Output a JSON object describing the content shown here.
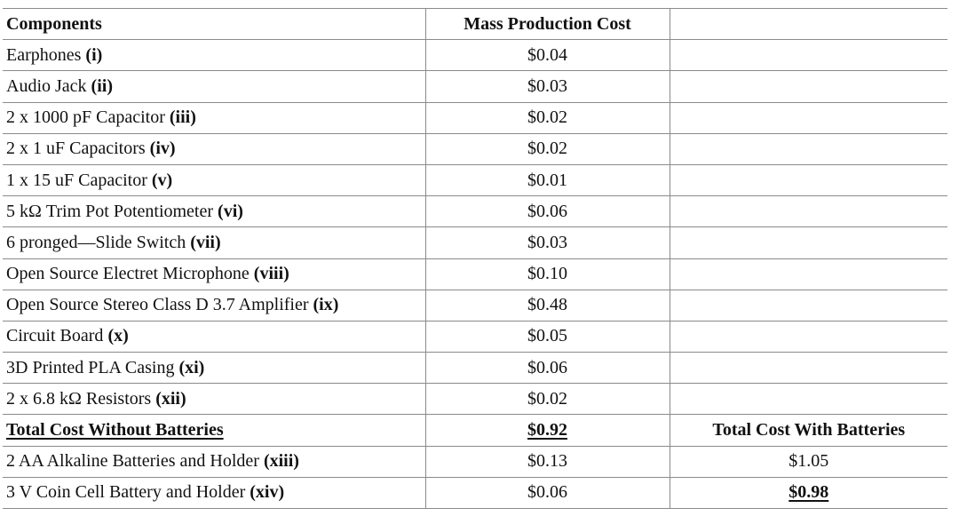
{
  "table": {
    "headers": {
      "components": "Components",
      "mass_production_cost": "Mass Production Cost",
      "extra": ""
    },
    "rows": [
      {
        "name": "Earphones",
        "roman": "(i)",
        "cost": "$0.04",
        "extra": ""
      },
      {
        "name": "Audio Jack",
        "roman": "(ii)",
        "cost": "$0.03",
        "extra": ""
      },
      {
        "name": "2 x 1000 pF Capacitor",
        "roman": "(iii)",
        "cost": "$0.02",
        "extra": ""
      },
      {
        "name": "2 x 1 uF Capacitors",
        "roman": "(iv)",
        "cost": "$0.02",
        "extra": ""
      },
      {
        "name": "1 x 15 uF Capacitor",
        "roman": "(v)",
        "cost": "$0.01",
        "extra": ""
      },
      {
        "name": "5 kΩ Trim Pot Potentiometer",
        "roman": "(vi)",
        "cost": "$0.06",
        "extra": ""
      },
      {
        "name": "6 pronged—Slide Switch",
        "roman": "(vii)",
        "cost": "$0.03",
        "extra": ""
      },
      {
        "name": "Open Source Electret Microphone",
        "roman": "(viii)",
        "cost": "$0.10",
        "extra": ""
      },
      {
        "name": "Open Source Stereo Class D 3.7 Amplifier",
        "roman": "(ix)",
        "cost": "$0.48",
        "extra": ""
      },
      {
        "name": "Circuit Board",
        "roman": "(x)",
        "cost": "$0.05",
        "extra": ""
      },
      {
        "name": "3D Printed PLA Casing",
        "roman": "(xi)",
        "cost": "$0.06",
        "extra": ""
      },
      {
        "name": "2 x 6.8 kΩ Resistors",
        "roman": "(xii)",
        "cost": "$0.02",
        "extra": ""
      }
    ],
    "total_without": {
      "label": "Total Cost Without Batteries",
      "cost": "$0.92",
      "with_label": "Total Cost With Batteries"
    },
    "battery_rows": [
      {
        "name": "2 AA Alkaline Batteries and Holder",
        "roman": "(xiii)",
        "cost": "$0.13",
        "total_with": "$1.05"
      },
      {
        "name": "3 V Coin Cell Battery and Holder",
        "roman": "(xiv)",
        "cost": "$0.06",
        "total_with": "$0.98"
      }
    ]
  }
}
